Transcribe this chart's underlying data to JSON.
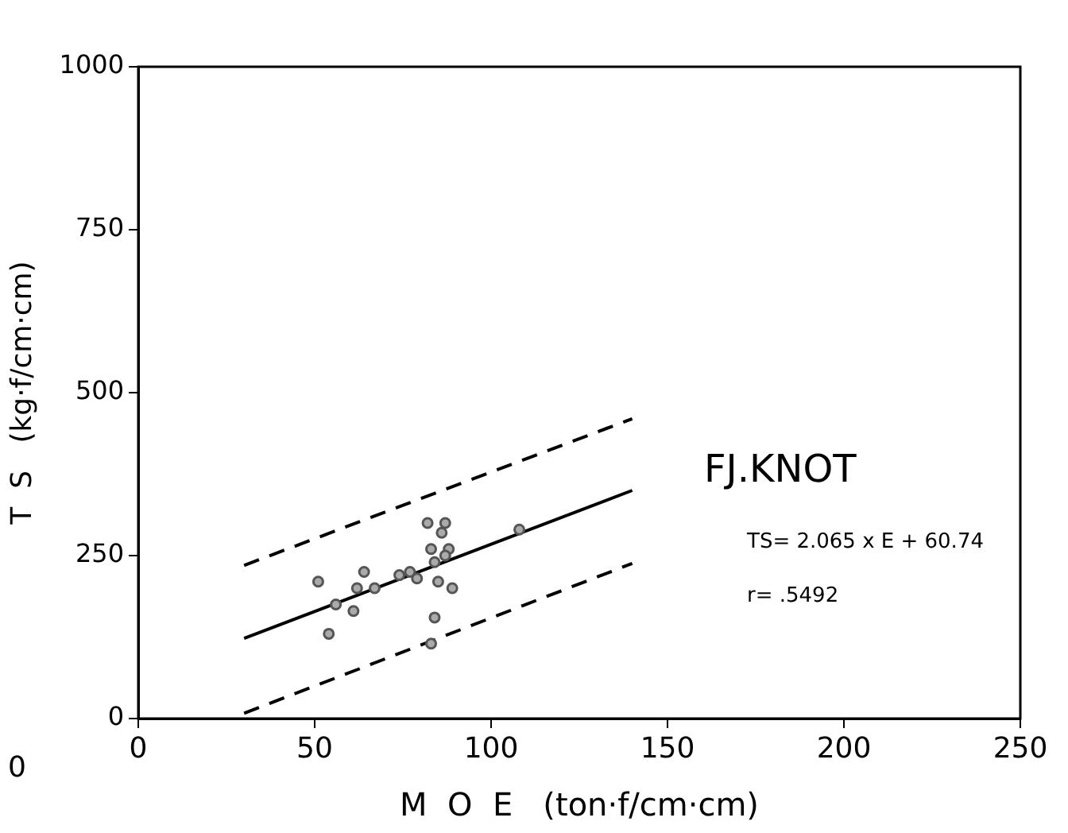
{
  "chart_data": {
    "type": "scatter",
    "title": "FJ.KNOT",
    "xlabel": "M  O  E   (ton·f/cm·cm)",
    "ylabel": "T  S   (kg·f/cm·cm)",
    "xlim": [
      0,
      250
    ],
    "xticks": [
      0,
      50,
      100,
      150,
      200,
      250
    ],
    "ylim": [
      0,
      1000
    ],
    "yticks": [
      0,
      250,
      500,
      750,
      1000
    ],
    "grid": false,
    "legend": false,
    "marker": "circle",
    "annotations": [
      "TS= 2.065 x E + 60.74",
      "r= .5492",
      "0"
    ],
    "series": [
      {
        "color": "#555555",
        "x": [
          51,
          64,
          62,
          67,
          56,
          61,
          54,
          74,
          77,
          79,
          82,
          87,
          86,
          83,
          88,
          84,
          87,
          85,
          89,
          84,
          83,
          108
        ],
        "values": [
          210,
          225,
          200,
          200,
          175,
          165,
          130,
          220,
          225,
          215,
          300,
          300,
          285,
          260,
          260,
          240,
          250,
          210,
          200,
          155,
          115,
          290
        ]
      },
      {
        "type": "line",
        "color": "#000000",
        "line_style": "solid",
        "marker": "none",
        "x": [
          30,
          140
        ],
        "values": [
          123,
          350
        ]
      },
      {
        "type": "line",
        "color": "#000000",
        "line_style": "dashed",
        "marker": "none",
        "x": [
          30,
          140
        ],
        "values": [
          235,
          460
        ]
      },
      {
        "type": "line",
        "color": "#000000",
        "line_style": "dashed",
        "marker": "none",
        "x": [
          30,
          140
        ],
        "values": [
          8,
          238
        ]
      }
    ]
  }
}
